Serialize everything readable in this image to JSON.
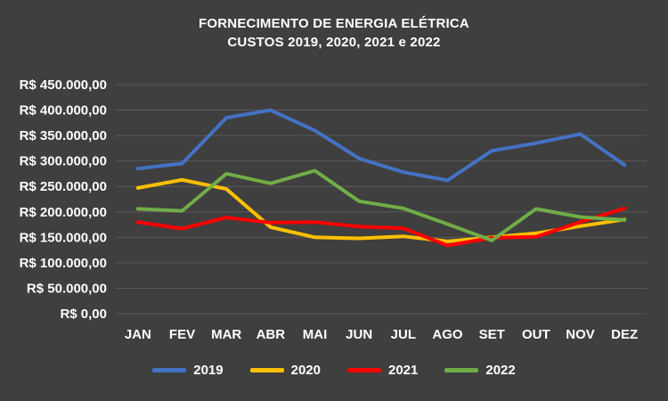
{
  "chart_data": {
    "type": "line",
    "title_line1": "FORNECIMENTO DE ENERGIA ELÉTRICA",
    "title_line2": "CUSTOS 2019, 2020, 2021 e 2022",
    "categories": [
      "JAN",
      "FEV",
      "MAR",
      "ABR",
      "MAI",
      "JUN",
      "JUL",
      "AGO",
      "SET",
      "OUT",
      "NOV",
      "DEZ"
    ],
    "series": [
      {
        "name": "2019",
        "color": "#4472C4",
        "values": [
          285000,
          295000,
          385000,
          400000,
          360000,
          305000,
          278000,
          262000,
          320000,
          335000,
          353000,
          292000
        ]
      },
      {
        "name": "2020",
        "color": "#FFC000",
        "values": [
          247000,
          263000,
          245000,
          170000,
          150000,
          148000,
          152000,
          142000,
          150000,
          158000,
          172000,
          185000
        ]
      },
      {
        "name": "2021",
        "color": "#FF0000",
        "values": [
          180000,
          167000,
          189000,
          179000,
          180000,
          171000,
          168000,
          134000,
          149000,
          151000,
          180000,
          207000
        ]
      },
      {
        "name": "2022",
        "color": "#70AD47",
        "values": [
          206000,
          202000,
          275000,
          256000,
          281000,
          221000,
          207000,
          176000,
          144000,
          206000,
          190000,
          184000
        ]
      }
    ],
    "y_ticks": [
      0,
      50000,
      100000,
      150000,
      200000,
      250000,
      300000,
      350000,
      400000,
      450000
    ],
    "y_tick_labels": [
      "R$ 0,00",
      "R$ 50.000,00",
      "R$ 100.000,00",
      "R$ 150.000,00",
      "R$ 200.000,00",
      "R$ 250.000,00",
      "R$ 300.000,00",
      "R$ 350.000,00",
      "R$ 400.000,00",
      "R$ 450.000,00"
    ],
    "ylim": [
      0,
      450000
    ],
    "grid": true,
    "legend_position": "bottom",
    "background_color": "#3F3F3F",
    "gridline_color": "#5A5A5A",
    "text_color": "#FFFFFF"
  }
}
